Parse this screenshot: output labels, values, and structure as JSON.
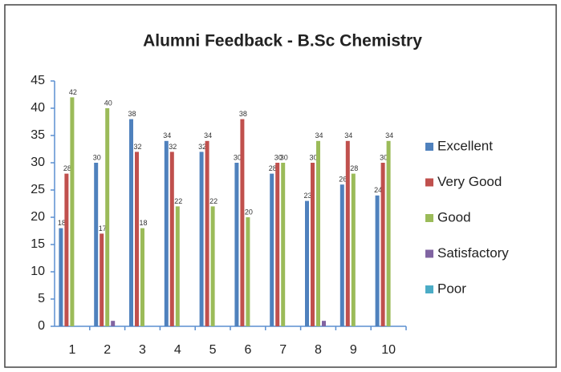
{
  "chart_data": {
    "type": "bar",
    "title": "Alumni Feedback - B.Sc Chemistry",
    "categories": [
      "1",
      "2",
      "3",
      "4",
      "5",
      "6",
      "7",
      "8",
      "9",
      "10"
    ],
    "series": [
      {
        "name": "Excellent",
        "color": "#4f81bd",
        "data_labels": true,
        "values": [
          18,
          30,
          38,
          34,
          32,
          30,
          28,
          23,
          26,
          24
        ]
      },
      {
        "name": "Very Good",
        "color": "#c0504d",
        "data_labels": true,
        "values": [
          28,
          17,
          32,
          32,
          34,
          38,
          30,
          30,
          34,
          30
        ]
      },
      {
        "name": "Good",
        "color": "#9bbb59",
        "data_labels": true,
        "values": [
          42,
          40,
          18,
          22,
          22,
          20,
          30,
          34,
          28,
          34
        ]
      },
      {
        "name": "Satisfactory",
        "color": "#8064a2",
        "data_labels": false,
        "values": [
          0,
          1,
          0,
          0,
          0,
          0,
          0,
          1,
          0,
          0
        ]
      },
      {
        "name": "Poor",
        "color": "#4bacc6",
        "data_labels": false,
        "values": [
          0,
          0,
          0,
          0,
          0,
          0,
          0,
          0,
          0,
          0
        ]
      }
    ],
    "ylim": [
      0,
      45
    ],
    "yticks": [
      0,
      5,
      10,
      15,
      20,
      25,
      30,
      35,
      40,
      45
    ],
    "grid": false,
    "legend": "right"
  }
}
